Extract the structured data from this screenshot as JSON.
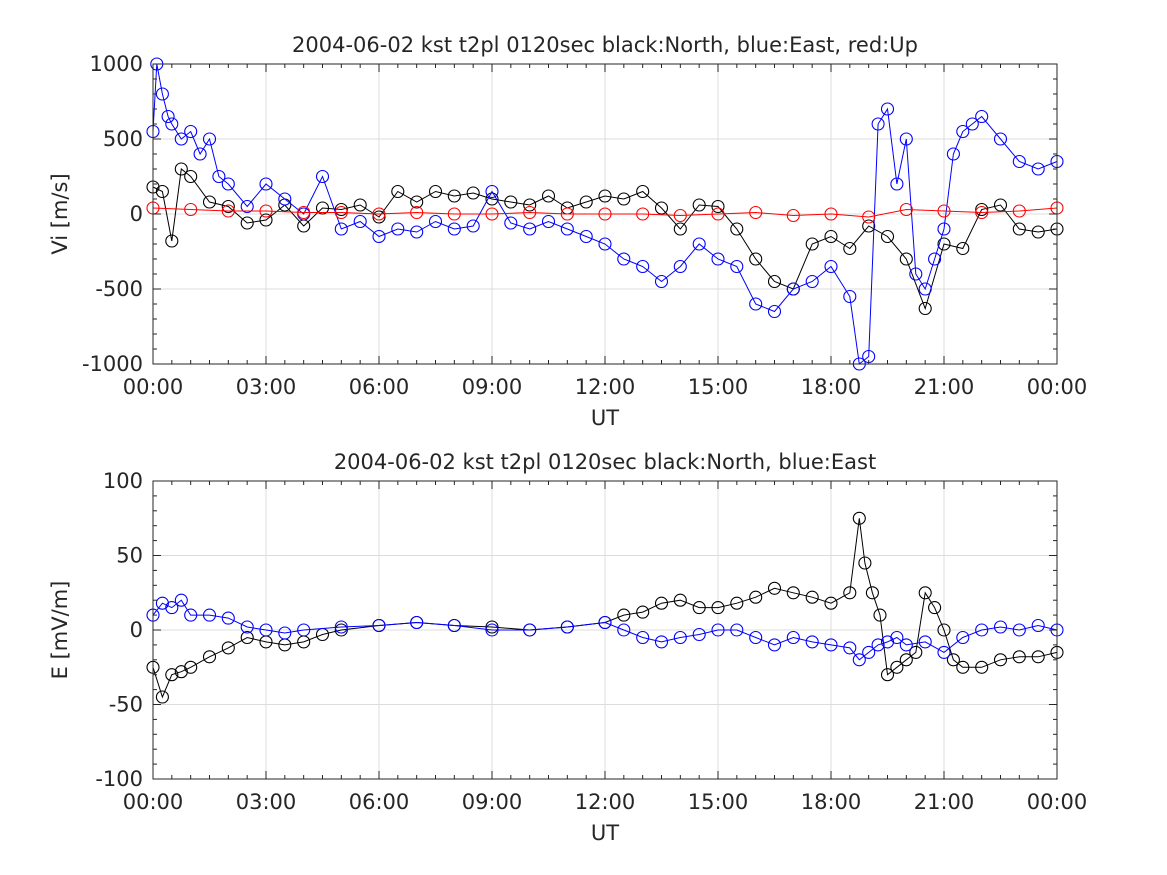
{
  "chart_data": [
    {
      "type": "scatter",
      "title": "2004-06-02 kst t2pl 0120sec black:North, blue:East, red:Up",
      "xlabel": "UT",
      "ylabel": "Vi [m/s]",
      "xlim": [
        0,
        24
      ],
      "ylim": [
        -1000,
        1000
      ],
      "xticks": [
        "00:00",
        "03:00",
        "06:00",
        "09:00",
        "12:00",
        "15:00",
        "18:00",
        "21:00",
        "00:00"
      ],
      "yticks": [
        "1000",
        "500",
        "0",
        "-500",
        "-1000"
      ],
      "grid": true,
      "x_unit": "hours UT",
      "series": [
        {
          "name": "North",
          "color": "#000000",
          "x": [
            0.0,
            0.25,
            0.5,
            0.75,
            1.0,
            1.5,
            2.0,
            2.5,
            3.0,
            3.5,
            4.0,
            4.5,
            5.0,
            5.5,
            6.0,
            6.5,
            7.0,
            7.5,
            8.0,
            8.5,
            9.0,
            9.5,
            10.0,
            10.5,
            11.0,
            11.5,
            12.0,
            12.5,
            13.0,
            13.5,
            14.0,
            14.5,
            15.0,
            15.5,
            16.0,
            16.5,
            17.0,
            17.5,
            18.0,
            18.5,
            19.0,
            19.5,
            20.0,
            20.5,
            21.0,
            21.5,
            22.0,
            22.5,
            23.0,
            23.5,
            24.0
          ],
          "values": [
            180,
            150,
            -180,
            300,
            250,
            80,
            50,
            -60,
            -40,
            60,
            -80,
            40,
            30,
            60,
            -20,
            150,
            80,
            150,
            120,
            140,
            100,
            80,
            60,
            120,
            40,
            80,
            120,
            100,
            150,
            40,
            -100,
            60,
            50,
            -100,
            -300,
            -450,
            -500,
            -200,
            -150,
            -230,
            -80,
            -150,
            -300,
            -630,
            -200,
            -230,
            30,
            60,
            -100,
            -120,
            -100
          ]
        },
        {
          "name": "East",
          "color": "#0000ff",
          "x": [
            0.0,
            0.1,
            0.25,
            0.4,
            0.5,
            0.75,
            1.0,
            1.25,
            1.5,
            1.75,
            2.0,
            2.5,
            3.0,
            3.5,
            4.0,
            4.5,
            5.0,
            5.5,
            6.0,
            6.5,
            7.0,
            7.5,
            8.0,
            8.5,
            9.0,
            9.5,
            10.0,
            10.5,
            11.0,
            11.5,
            12.0,
            12.5,
            13.0,
            13.5,
            14.0,
            14.5,
            15.0,
            15.5,
            16.0,
            16.5,
            17.0,
            17.5,
            18.0,
            18.5,
            18.75,
            19.0,
            19.25,
            19.5,
            19.75,
            20.0,
            20.25,
            20.5,
            20.75,
            21.0,
            21.25,
            21.5,
            21.75,
            22.0,
            22.5,
            23.0,
            23.5,
            24.0
          ],
          "values": [
            550,
            1000,
            800,
            650,
            600,
            500,
            550,
            400,
            500,
            250,
            200,
            50,
            200,
            100,
            0,
            250,
            -100,
            -50,
            -150,
            -100,
            -120,
            -50,
            -100,
            -80,
            150,
            -60,
            -100,
            -50,
            -100,
            -150,
            -200,
            -300,
            -350,
            -450,
            -350,
            -200,
            -300,
            -350,
            -600,
            -650,
            -500,
            -450,
            -350,
            -550,
            -1000,
            -950,
            600,
            700,
            200,
            500,
            -400,
            -500,
            -300,
            -100,
            400,
            550,
            600,
            650,
            500,
            350,
            300,
            350
          ]
        },
        {
          "name": "Up",
          "color": "#ff0000",
          "x": [
            0.0,
            1.0,
            2.0,
            3.0,
            4.0,
            5.0,
            6.0,
            7.0,
            8.0,
            9.0,
            10.0,
            11.0,
            12.0,
            13.0,
            14.0,
            15.0,
            16.0,
            17.0,
            18.0,
            19.0,
            20.0,
            21.0,
            22.0,
            23.0,
            24.0
          ],
          "values": [
            40,
            30,
            20,
            20,
            10,
            10,
            0,
            10,
            0,
            0,
            10,
            0,
            0,
            0,
            -10,
            0,
            10,
            -10,
            0,
            -20,
            30,
            20,
            10,
            20,
            40
          ]
        }
      ]
    },
    {
      "type": "scatter",
      "title": "2004-06-02 kst t2pl 0120sec black:North, blue:East",
      "xlabel": "UT",
      "ylabel": "E [mV/m]",
      "xlim": [
        0,
        24
      ],
      "ylim": [
        -100,
        100
      ],
      "xticks": [
        "00:00",
        "03:00",
        "06:00",
        "09:00",
        "12:00",
        "15:00",
        "18:00",
        "21:00",
        "00:00"
      ],
      "yticks": [
        "100",
        "50",
        "0",
        "-50",
        "-100"
      ],
      "grid": true,
      "x_unit": "hours UT",
      "series": [
        {
          "name": "North",
          "color": "#000000",
          "x": [
            0.0,
            0.25,
            0.5,
            0.75,
            1.0,
            1.5,
            2.0,
            2.5,
            3.0,
            3.5,
            4.0,
            4.5,
            5.0,
            6.0,
            7.0,
            8.0,
            9.0,
            10.0,
            11.0,
            12.0,
            12.5,
            13.0,
            13.5,
            14.0,
            14.5,
            15.0,
            15.5,
            16.0,
            16.5,
            17.0,
            17.5,
            18.0,
            18.5,
            18.75,
            18.9,
            19.1,
            19.3,
            19.5,
            19.75,
            20.0,
            20.25,
            20.5,
            20.75,
            21.0,
            21.25,
            21.5,
            22.0,
            22.5,
            23.0,
            23.5,
            24.0
          ],
          "values": [
            -25,
            -45,
            -30,
            -28,
            -25,
            -18,
            -12,
            -5,
            -8,
            -10,
            -8,
            -3,
            0,
            3,
            5,
            3,
            2,
            0,
            2,
            5,
            10,
            12,
            18,
            20,
            15,
            15,
            18,
            22,
            28,
            25,
            22,
            18,
            25,
            75,
            45,
            25,
            10,
            -30,
            -25,
            -20,
            -15,
            25,
            15,
            0,
            -20,
            -25,
            -25,
            -20,
            -18,
            -18,
            -15
          ]
        },
        {
          "name": "East",
          "color": "#0000ff",
          "x": [
            0.0,
            0.25,
            0.5,
            0.75,
            1.0,
            1.5,
            2.0,
            2.5,
            3.0,
            3.5,
            4.0,
            5.0,
            6.0,
            7.0,
            8.0,
            9.0,
            10.0,
            11.0,
            12.0,
            12.5,
            13.0,
            13.5,
            14.0,
            14.5,
            15.0,
            15.5,
            16.0,
            16.5,
            17.0,
            17.5,
            18.0,
            18.5,
            18.75,
            19.0,
            19.25,
            19.5,
            19.75,
            20.0,
            20.5,
            21.0,
            21.5,
            22.0,
            22.5,
            23.0,
            23.5,
            24.0
          ],
          "values": [
            10,
            18,
            15,
            20,
            10,
            10,
            8,
            2,
            0,
            -2,
            0,
            2,
            3,
            5,
            3,
            0,
            0,
            2,
            5,
            0,
            -5,
            -8,
            -5,
            -3,
            0,
            0,
            -5,
            -10,
            -5,
            -8,
            -10,
            -12,
            -20,
            -15,
            -10,
            -8,
            -5,
            -10,
            -8,
            -15,
            -5,
            0,
            2,
            0,
            3,
            0
          ]
        }
      ]
    }
  ]
}
